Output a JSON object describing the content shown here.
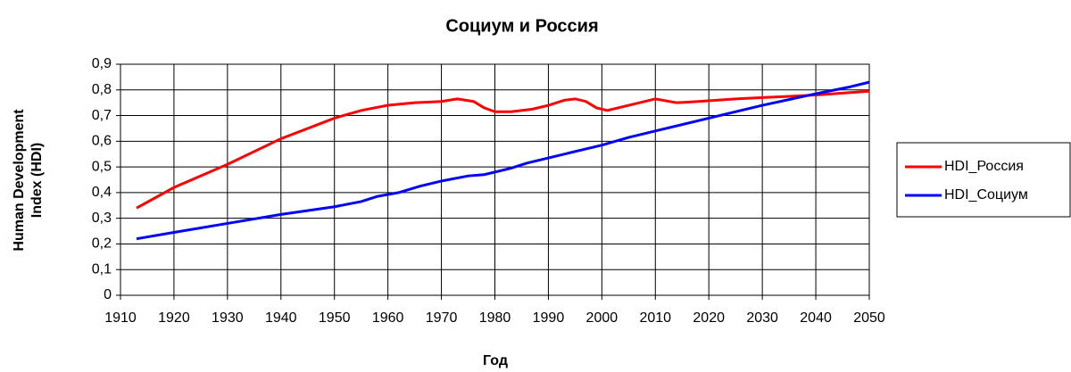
{
  "chart_data": {
    "type": "line",
    "title": "Социум и Россия",
    "xlabel": "Год",
    "ylabel": [
      "Human Development",
      "Index (HDI)"
    ],
    "xlim": [
      1910,
      2050
    ],
    "xticks": [
      1910,
      1920,
      1930,
      1940,
      1950,
      1960,
      1970,
      1980,
      1990,
      2000,
      2010,
      2020,
      2030,
      2040,
      2050
    ],
    "ylim": [
      0,
      0.9
    ],
    "yticks": [
      0,
      {
        "value": 0.1,
        "label": "0,1"
      },
      {
        "value": 0.2,
        "label": "0,2"
      },
      {
        "value": 0.3,
        "label": "0,3"
      },
      {
        "value": 0.4,
        "label": "0,4"
      },
      {
        "value": 0.5,
        "label": "0,5"
      },
      {
        "value": 0.6,
        "label": "0,6"
      },
      {
        "value": 0.7,
        "label": "0,7"
      },
      {
        "value": 0.8,
        "label": "0,8"
      },
      {
        "value": 0.9,
        "label": "0,9"
      }
    ],
    "grid": true,
    "legend": "right",
    "series": [
      {
        "name": "HDI_Россия",
        "color": "#ff0000",
        "x": [
          1913,
          1920,
          1930,
          1940,
          1950,
          1955,
          1960,
          1965,
          1970,
          1973,
          1976,
          1978,
          1980,
          1983,
          1987,
          1990,
          1993,
          1995,
          1997,
          1999,
          2001,
          2005,
          2010,
          2014,
          2018,
          2025,
          2030,
          2040,
          2050
        ],
        "values": [
          0.34,
          0.42,
          0.51,
          0.61,
          0.69,
          0.72,
          0.74,
          0.75,
          0.755,
          0.765,
          0.755,
          0.73,
          0.715,
          0.715,
          0.725,
          0.74,
          0.76,
          0.765,
          0.755,
          0.73,
          0.72,
          0.74,
          0.765,
          0.75,
          0.755,
          0.765,
          0.77,
          0.78,
          0.795
        ]
      },
      {
        "name": "HDI_Социум",
        "color": "#0000ff",
        "x": [
          1913,
          1920,
          1930,
          1940,
          1950,
          1955,
          1958,
          1962,
          1966,
          1970,
          1975,
          1978,
          1983,
          1986,
          1990,
          2000,
          2005,
          2010,
          2020,
          2030,
          2040,
          2046,
          2050
        ],
        "values": [
          0.22,
          0.245,
          0.28,
          0.315,
          0.345,
          0.365,
          0.385,
          0.4,
          0.425,
          0.445,
          0.465,
          0.47,
          0.495,
          0.515,
          0.535,
          0.585,
          0.615,
          0.64,
          0.69,
          0.74,
          0.785,
          0.81,
          0.83
        ]
      }
    ]
  }
}
